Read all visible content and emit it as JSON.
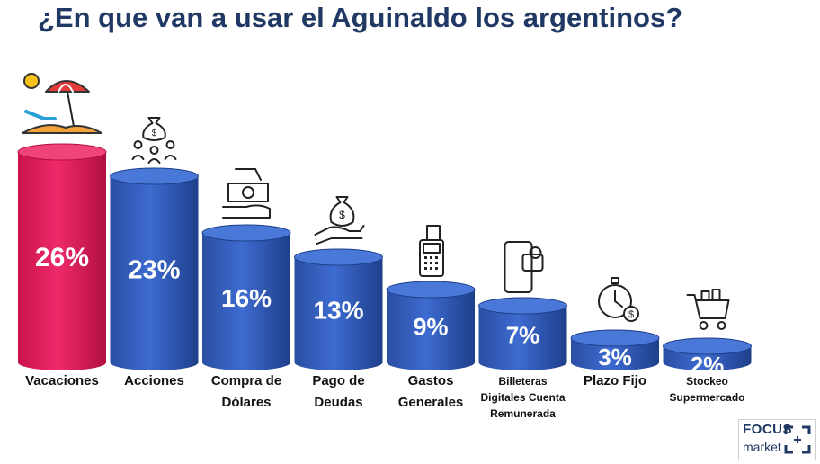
{
  "title": "¿En que van a usar el Aguinaldo los argentinos?",
  "logo": {
    "line1": "FOCUS",
    "line2": "market"
  },
  "chart_data": {
    "type": "bar",
    "title": "¿En que van a usar el Aguinaldo los argentinos?",
    "categories": [
      [
        "Vacaciones"
      ],
      [
        "Acciones"
      ],
      [
        "Compra de",
        "Dólares"
      ],
      [
        "Pago de",
        "Deudas"
      ],
      [
        "Gastos",
        "Generales"
      ],
      [
        "Billeteras",
        "Digitales Cuenta",
        "Remunerada"
      ],
      [
        "Plazo Fijo"
      ],
      [
        "Stockeo",
        "Supermercado"
      ]
    ],
    "values": [
      26,
      23,
      16,
      13,
      9,
      7,
      3,
      2
    ],
    "value_labels": [
      "26%",
      "23%",
      "16%",
      "13%",
      "9%",
      "7%",
      "3%",
      "2%"
    ],
    "icons": [
      "beach-umbrella-icon",
      "money-bag-network-icon",
      "cash-exchange-icon",
      "money-bag-hand-icon",
      "receipt-terminal-icon",
      "mobile-wallet-icon",
      "stopwatch-money-icon",
      "shopping-cart-icon"
    ],
    "colors": {
      "highlight": "#e2185a",
      "bar": "#2f59b4",
      "bar_dark": "#1e3f8a",
      "title": "#1f3864"
    },
    "grid": false,
    "legend": "none"
  }
}
